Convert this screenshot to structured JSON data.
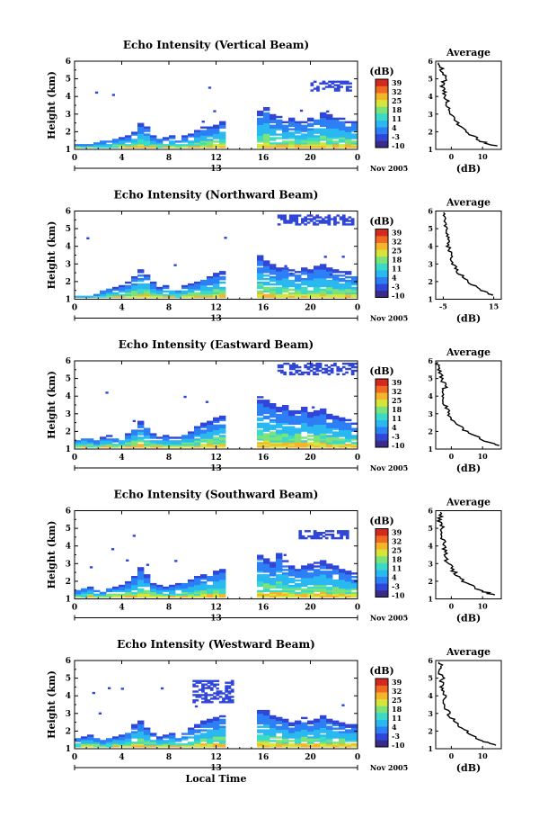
{
  "chart_data": [
    {
      "type": "heatmap",
      "title": "Echo Intensity (Vertical Beam)",
      "ylabel": "Height (km)",
      "x_ticks": [
        "0",
        "4",
        "8",
        "12",
        "16",
        "20",
        "0"
      ],
      "day_label": "13",
      "month_label": "Nov 2005",
      "xlim": [
        0,
        24
      ],
      "ylim": [
        1,
        6
      ],
      "y_ticks": [
        "1",
        "2",
        "3",
        "4",
        "5",
        "6"
      ],
      "cbar_label": "(dB)",
      "cbar_ticks": [
        "39",
        "32",
        "25",
        "18",
        "11",
        "4",
        "-3",
        "-10"
      ],
      "echo_tops_km": [
        1.3,
        1.3,
        1.3,
        1.4,
        1.5,
        1.5,
        1.6,
        1.7,
        1.8,
        2.0,
        2.5,
        2.3,
        1.8,
        1.6,
        1.7,
        1.8,
        1.6,
        1.8,
        1.9,
        2.1,
        2.3,
        2.3,
        2.4,
        2.6,
        0,
        0,
        0,
        0,
        0,
        3.2,
        3.4,
        3.0,
        2.9,
        2.6,
        2.8,
        2.7,
        2.6,
        2.8,
        2.9,
        3.1,
        3.0,
        2.9,
        2.8,
        2.6,
        2.7
      ],
      "upper_layer": {
        "x_range": [
          20,
          23.5
        ],
        "y_range": [
          4.3,
          4.8
        ]
      },
      "avg_profile": {
        "title": "Average",
        "xlabel": "(dB)",
        "x_ticks": [
          "0",
          "10"
        ],
        "xlim": [
          -5,
          16
        ],
        "heights": [
          1.2,
          1.5,
          2.0,
          2.5,
          3.0,
          3.5,
          4.0,
          4.5,
          5.0,
          5.5,
          6.0
        ],
        "values": [
          14,
          9,
          5,
          2,
          0,
          -1,
          -2,
          -3,
          -2,
          -3,
          -4
        ]
      }
    },
    {
      "type": "heatmap",
      "title": "Echo Intensity (Northward Beam)",
      "ylabel": "Height (km)",
      "x_ticks": [
        "0",
        "4",
        "8",
        "12",
        "16",
        "20",
        "0"
      ],
      "day_label": "13",
      "month_label": "Nov 2005",
      "xlim": [
        0,
        24
      ],
      "ylim": [
        1,
        6
      ],
      "y_ticks": [
        "1",
        "2",
        "3",
        "4",
        "5",
        "6"
      ],
      "cbar_label": "(dB)",
      "cbar_ticks": [
        "39",
        "32",
        "25",
        "18",
        "11",
        "4",
        "-3",
        "-10"
      ],
      "echo_tops_km": [
        1.2,
        1.2,
        1.2,
        1.3,
        1.5,
        1.6,
        1.7,
        1.8,
        2.0,
        2.3,
        2.7,
        2.5,
        2.0,
        1.7,
        1.8,
        1.7,
        1.6,
        1.8,
        1.9,
        2.0,
        2.2,
        2.3,
        2.5,
        2.6,
        0,
        0,
        0,
        0,
        0,
        3.5,
        3.2,
        3.0,
        2.8,
        2.9,
        2.7,
        2.6,
        2.8,
        2.7,
        2.9,
        3.0,
        2.8,
        2.7,
        2.6,
        2.6,
        2.5
      ],
      "upper_layer": {
        "x_range": [
          17.2,
          23.8
        ],
        "y_range": [
          5.2,
          5.7
        ]
      },
      "avg_profile": {
        "title": "Average",
        "xlabel": "(dB)",
        "x_ticks": [
          "-5",
          "15"
        ],
        "xlim": [
          -8,
          18
        ],
        "heights": [
          1.2,
          1.5,
          2.0,
          2.5,
          3.0,
          3.5,
          4.0,
          4.5,
          5.0,
          5.5,
          6.0
        ],
        "values": [
          15,
          10,
          5,
          1,
          -1,
          -2,
          -3,
          -3,
          -4,
          -5,
          -4
        ]
      }
    },
    {
      "type": "heatmap",
      "title": "Echo Intensity (Eastward Beam)",
      "ylabel": "Height (km)",
      "x_ticks": [
        "0",
        "4",
        "8",
        "12",
        "16",
        "20",
        "0"
      ],
      "day_label": "13",
      "month_label": "Nov 2005",
      "xlim": [
        0,
        24
      ],
      "ylim": [
        1,
        6
      ],
      "y_ticks": [
        "1",
        "2",
        "3",
        "4",
        "5",
        "6"
      ],
      "cbar_label": "(dB)",
      "cbar_ticks": [
        "39",
        "32",
        "25",
        "18",
        "11",
        "4",
        "-3",
        "-10"
      ],
      "echo_tops_km": [
        1.6,
        1.7,
        1.6,
        1.5,
        1.7,
        1.8,
        1.6,
        1.7,
        1.9,
        2.2,
        2.6,
        2.3,
        1.9,
        1.7,
        1.8,
        1.7,
        1.7,
        1.9,
        2.0,
        2.3,
        2.5,
        2.6,
        2.8,
        2.9,
        0,
        0,
        0,
        0,
        0,
        4.0,
        3.8,
        3.6,
        3.4,
        3.5,
        3.2,
        3.3,
        3.4,
        3.1,
        3.2,
        3.3,
        3.0,
        2.9,
        2.8,
        2.7,
        2.6
      ],
      "upper_layer": {
        "x_range": [
          17.2,
          23.8
        ],
        "y_range": [
          5.2,
          5.8
        ]
      },
      "avg_profile": {
        "title": "Average",
        "xlabel": "(dB)",
        "x_ticks": [
          "0",
          "10"
        ],
        "xlim": [
          -5,
          16
        ],
        "heights": [
          1.2,
          1.5,
          2.0,
          2.5,
          3.0,
          3.5,
          4.0,
          4.5,
          5.0,
          5.5,
          6.0
        ],
        "values": [
          15,
          10,
          5,
          1,
          -1,
          -2,
          -3,
          -2,
          -3,
          -4,
          -5
        ]
      }
    },
    {
      "type": "heatmap",
      "title": "Echo Intensity (Southward Beam)",
      "ylabel": "Height (km)",
      "x_ticks": [
        "0",
        "4",
        "8",
        "12",
        "16",
        "20",
        "0"
      ],
      "day_label": "13",
      "month_label": "Nov 2005",
      "xlim": [
        0,
        24
      ],
      "ylim": [
        1,
        6
      ],
      "y_ticks": [
        "1",
        "2",
        "3",
        "4",
        "5",
        "6"
      ],
      "cbar_label": "(dB)",
      "cbar_ticks": [
        "39",
        "32",
        "25",
        "18",
        "11",
        "4",
        "-3",
        "-10"
      ],
      "echo_tops_km": [
        1.5,
        1.6,
        1.7,
        1.5,
        1.4,
        1.6,
        1.7,
        1.8,
        2.0,
        2.3,
        2.8,
        2.4,
        1.9,
        1.8,
        1.7,
        1.8,
        1.9,
        2.0,
        2.1,
        2.3,
        2.4,
        2.5,
        2.6,
        2.7,
        0,
        0,
        0,
        0,
        0,
        3.6,
        3.3,
        3.1,
        3.6,
        3.2,
        2.9,
        2.8,
        2.9,
        3.0,
        3.1,
        3.2,
        3.0,
        2.9,
        2.7,
        2.6,
        2.5
      ],
      "upper_layer": {
        "x_range": [
          19,
          23.5
        ],
        "y_range": [
          4.4,
          4.8
        ]
      },
      "avg_profile": {
        "title": "Average",
        "xlabel": "(dB)",
        "x_ticks": [
          "0",
          "10"
        ],
        "xlim": [
          -5,
          16
        ],
        "heights": [
          1.2,
          1.5,
          2.0,
          2.5,
          3.0,
          3.5,
          4.0,
          4.5,
          5.0,
          5.5,
          6.0
        ],
        "values": [
          14,
          9,
          4,
          1,
          -1,
          -2,
          -2,
          -3,
          -3,
          -4,
          -3
        ]
      }
    },
    {
      "type": "heatmap",
      "title": "Echo Intensity (Westward Beam)",
      "ylabel": "Height (km)",
      "x_ticks": [
        "0",
        "4",
        "8",
        "12",
        "16",
        "20",
        "0"
      ],
      "day_label": "13",
      "month_label": "Nov 2005",
      "xlabel": "Local Time",
      "xlim": [
        0,
        24
      ],
      "ylim": [
        1,
        6
      ],
      "y_ticks": [
        "1",
        "2",
        "3",
        "4",
        "5",
        "6"
      ],
      "cbar_label": "(dB)",
      "cbar_ticks": [
        "39",
        "32",
        "25",
        "18",
        "11",
        "4",
        "-3",
        "-10"
      ],
      "echo_tops_km": [
        1.6,
        1.7,
        1.8,
        1.6,
        1.5,
        1.6,
        1.7,
        1.8,
        2.0,
        2.4,
        2.6,
        2.2,
        1.9,
        1.7,
        1.8,
        1.9,
        1.8,
        2.0,
        2.2,
        2.4,
        2.6,
        2.7,
        2.8,
        2.9,
        0,
        0,
        0,
        0,
        0,
        3.3,
        3.2,
        3.0,
        2.8,
        2.7,
        2.5,
        2.6,
        2.8,
        2.6,
        2.7,
        2.9,
        2.7,
        2.6,
        2.5,
        2.4,
        2.4
      ],
      "upper_layer": {
        "x_range": [
          10,
          13.5
        ],
        "y_range": [
          3.6,
          4.8
        ]
      },
      "avg_profile": {
        "title": "Average",
        "xlabel": "(dB)",
        "x_ticks": [
          "0",
          "10"
        ],
        "xlim": [
          -5,
          16
        ],
        "heights": [
          1.2,
          1.5,
          2.0,
          2.5,
          3.0,
          3.5,
          4.0,
          4.5,
          5.0,
          5.5,
          6.0
        ],
        "values": [
          14,
          9,
          5,
          1,
          -1,
          -2,
          -2,
          -3,
          -3,
          -4,
          -3
        ]
      }
    }
  ],
  "colors": {
    "cbar": [
      "#3a2a8a",
      "#3046d8",
      "#2d7ff5",
      "#2ab8f0",
      "#3bd9c9",
      "#7be37a",
      "#d9e43a",
      "#f5b52a",
      "#f06a24",
      "#d42a1e"
    ]
  }
}
